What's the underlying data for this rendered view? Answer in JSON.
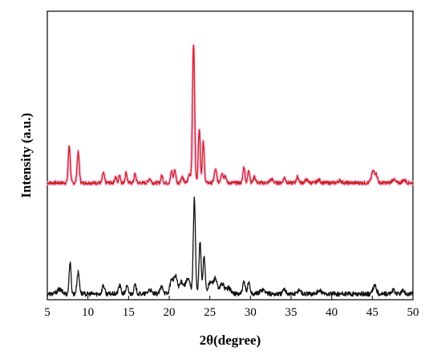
{
  "chart_data": {
    "type": "line",
    "title": "",
    "xlabel": "2θ(degree)",
    "ylabel": "Intensity (a.u.)",
    "xlim": [
      5,
      50
    ],
    "ylim": [
      0,
      1
    ],
    "x_ticks": [
      5,
      10,
      15,
      20,
      25,
      30,
      35,
      40,
      45,
      50
    ],
    "y_tick_labels": "none",
    "grid": false,
    "legend": "none",
    "series": [
      {
        "color": "#cc2222",
        "halo_color": "#f2b8e0",
        "baseline": 0.405,
        "noise": 0.006,
        "peaks": [
          [
            7.7,
            0.13,
            0.12
          ],
          [
            8.8,
            0.105,
            0.13
          ],
          [
            11.9,
            0.035,
            0.12
          ],
          [
            13.4,
            0.02,
            0.12
          ],
          [
            13.9,
            0.03,
            0.1
          ],
          [
            14.7,
            0.035,
            0.12
          ],
          [
            15.8,
            0.03,
            0.12
          ],
          [
            17.6,
            0.015,
            0.15
          ],
          [
            19.1,
            0.025,
            0.12
          ],
          [
            20.3,
            0.04,
            0.12
          ],
          [
            20.7,
            0.045,
            0.12
          ],
          [
            21.6,
            0.02,
            0.15
          ],
          [
            22.5,
            0.03,
            0.15
          ],
          [
            23.0,
            0.48,
            0.13
          ],
          [
            23.7,
            0.19,
            0.12
          ],
          [
            24.2,
            0.14,
            0.12
          ],
          [
            25.7,
            0.045,
            0.15
          ],
          [
            26.5,
            0.035,
            0.15
          ],
          [
            26.9,
            0.025,
            0.12
          ],
          [
            29.2,
            0.055,
            0.12
          ],
          [
            29.8,
            0.045,
            0.12
          ],
          [
            30.5,
            0.02,
            0.15
          ],
          [
            32.6,
            0.012,
            0.2
          ],
          [
            34.2,
            0.018,
            0.15
          ],
          [
            35.8,
            0.02,
            0.15
          ],
          [
            36.9,
            0.01,
            0.2
          ],
          [
            38.4,
            0.01,
            0.2
          ],
          [
            41.0,
            0.008,
            0.2
          ],
          [
            45.1,
            0.04,
            0.2
          ],
          [
            45.5,
            0.025,
            0.15
          ],
          [
            47.6,
            0.012,
            0.2
          ],
          [
            48.9,
            0.01,
            0.2
          ]
        ]
      },
      {
        "color": "#111111",
        "halo_color": "",
        "baseline": 0.02,
        "noise": 0.008,
        "peaks": [
          [
            6.5,
            0.015,
            0.3
          ],
          [
            7.8,
            0.11,
            0.12
          ],
          [
            8.8,
            0.075,
            0.15
          ],
          [
            11.9,
            0.03,
            0.15
          ],
          [
            13.9,
            0.03,
            0.15
          ],
          [
            14.8,
            0.025,
            0.15
          ],
          [
            15.8,
            0.03,
            0.15
          ],
          [
            17.6,
            0.015,
            0.2
          ],
          [
            19.1,
            0.025,
            0.2
          ],
          [
            20.3,
            0.05,
            0.2
          ],
          [
            20.8,
            0.06,
            0.2
          ],
          [
            21.5,
            0.04,
            0.25
          ],
          [
            22.3,
            0.05,
            0.3
          ],
          [
            23.1,
            0.33,
            0.13
          ],
          [
            23.8,
            0.18,
            0.13
          ],
          [
            24.3,
            0.13,
            0.13
          ],
          [
            25.1,
            0.04,
            0.3
          ],
          [
            25.7,
            0.05,
            0.2
          ],
          [
            26.5,
            0.035,
            0.25
          ],
          [
            27.3,
            0.02,
            0.3
          ],
          [
            29.2,
            0.04,
            0.15
          ],
          [
            29.8,
            0.04,
            0.15
          ],
          [
            31.5,
            0.015,
            0.3
          ],
          [
            34.2,
            0.015,
            0.2
          ],
          [
            36.0,
            0.015,
            0.2
          ],
          [
            38.5,
            0.01,
            0.3
          ],
          [
            45.3,
            0.03,
            0.2
          ],
          [
            47.6,
            0.012,
            0.2
          ],
          [
            48.8,
            0.01,
            0.2
          ]
        ]
      }
    ]
  }
}
